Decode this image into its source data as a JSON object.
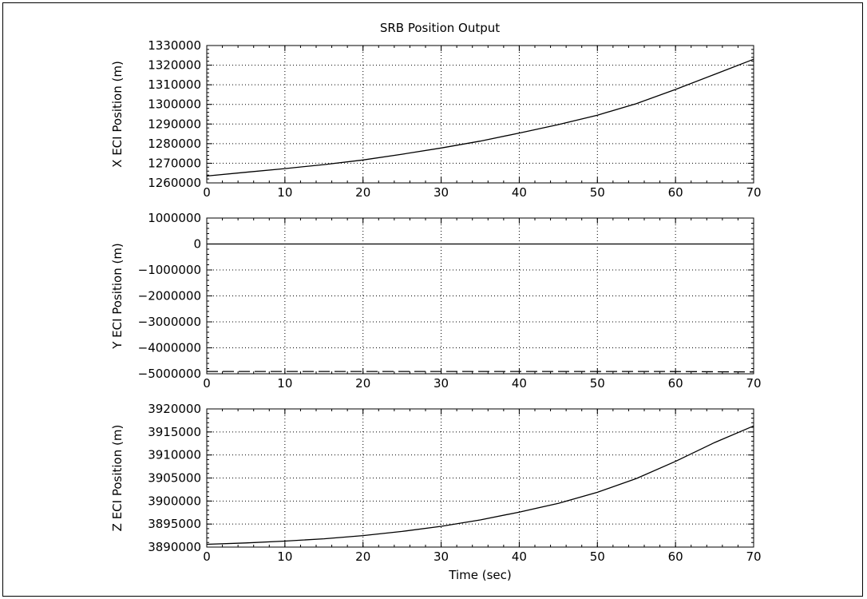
{
  "title": "SRB Position Output",
  "chart_data": [
    {
      "type": "line",
      "title": "SRB Position Output",
      "xlabel": "",
      "ylabel": "X ECI Position (m)",
      "xlim": [
        0,
        70
      ],
      "ylim": [
        1260000,
        1330000
      ],
      "xticks": [
        0,
        10,
        20,
        30,
        40,
        50,
        60,
        70
      ],
      "yticks": [
        1260000,
        1270000,
        1280000,
        1290000,
        1300000,
        1310000,
        1320000,
        1330000
      ],
      "grid": true,
      "series": [
        {
          "style": "solid",
          "x": [
            0,
            5,
            10,
            15,
            20,
            25,
            30,
            35,
            40,
            45,
            50,
            55,
            60,
            65,
            70
          ],
          "y": [
            1263500,
            1265400,
            1267300,
            1269300,
            1271700,
            1274600,
            1277800,
            1281300,
            1285400,
            1289700,
            1294500,
            1300400,
            1307600,
            1315300,
            1323000
          ]
        }
      ]
    },
    {
      "type": "line",
      "title": "",
      "xlabel": "",
      "ylabel": "Y ECI Position (m)",
      "xlim": [
        0,
        70
      ],
      "ylim": [
        -5000000,
        1000000
      ],
      "xticks": [
        0,
        10,
        20,
        30,
        40,
        50,
        60,
        70
      ],
      "yticks": [
        -5000000,
        -4000000,
        -3000000,
        -2000000,
        -1000000,
        0,
        1000000
      ],
      "grid": true,
      "series": [
        {
          "style": "solid",
          "x": [
            0,
            70
          ],
          "y": [
            0,
            0
          ]
        },
        {
          "style": "dashed",
          "x": [
            0,
            58,
            70
          ],
          "y": [
            -4910000,
            -4910000,
            -4930000
          ]
        }
      ]
    },
    {
      "type": "line",
      "title": "",
      "xlabel": "Time (sec)",
      "ylabel": "Z ECI Position (m)",
      "xlim": [
        0,
        70
      ],
      "ylim": [
        3890000,
        3920000
      ],
      "xticks": [
        0,
        10,
        20,
        30,
        40,
        50,
        60,
        70
      ],
      "yticks": [
        3890000,
        3895000,
        3900000,
        3905000,
        3910000,
        3915000,
        3920000
      ],
      "grid": true,
      "series": [
        {
          "style": "solid",
          "x": [
            0,
            5,
            10,
            15,
            20,
            25,
            30,
            35,
            40,
            45,
            50,
            55,
            60,
            65,
            70
          ],
          "y": [
            3890600,
            3890900,
            3891300,
            3891800,
            3892500,
            3893400,
            3894500,
            3895900,
            3897600,
            3899500,
            3901900,
            3904900,
            3908600,
            3912700,
            3916300
          ]
        }
      ]
    }
  ]
}
